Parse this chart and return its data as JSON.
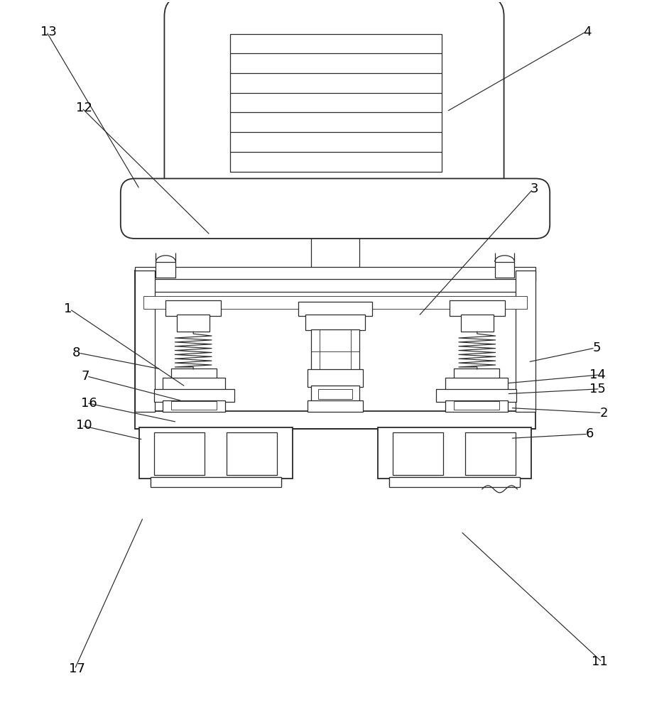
{
  "bg_color": "#ffffff",
  "line_color": "#2a2a2a",
  "lw_main": 1.3,
  "lw_med": 0.9,
  "lw_thin": 0.6,
  "label_fs": 13,
  "annotations": [
    [
      "13",
      55,
      42,
      195,
      265
    ],
    [
      "12",
      105,
      150,
      295,
      330
    ],
    [
      "4",
      835,
      42,
      630,
      155
    ],
    [
      "3",
      760,
      265,
      590,
      445
    ],
    [
      "1",
      88,
      435,
      260,
      545
    ],
    [
      "5",
      848,
      490,
      745,
      510
    ],
    [
      "8",
      100,
      497,
      225,
      520
    ],
    [
      "14",
      855,
      528,
      715,
      540
    ],
    [
      "7",
      112,
      530,
      255,
      565
    ],
    [
      "15",
      855,
      548,
      715,
      555
    ],
    [
      "16",
      112,
      568,
      248,
      595
    ],
    [
      "2",
      858,
      582,
      720,
      575
    ],
    [
      "10",
      105,
      600,
      200,
      620
    ],
    [
      "6",
      838,
      612,
      720,
      618
    ],
    [
      "17",
      95,
      945,
      200,
      730
    ],
    [
      "11",
      858,
      935,
      650,
      750
    ]
  ]
}
